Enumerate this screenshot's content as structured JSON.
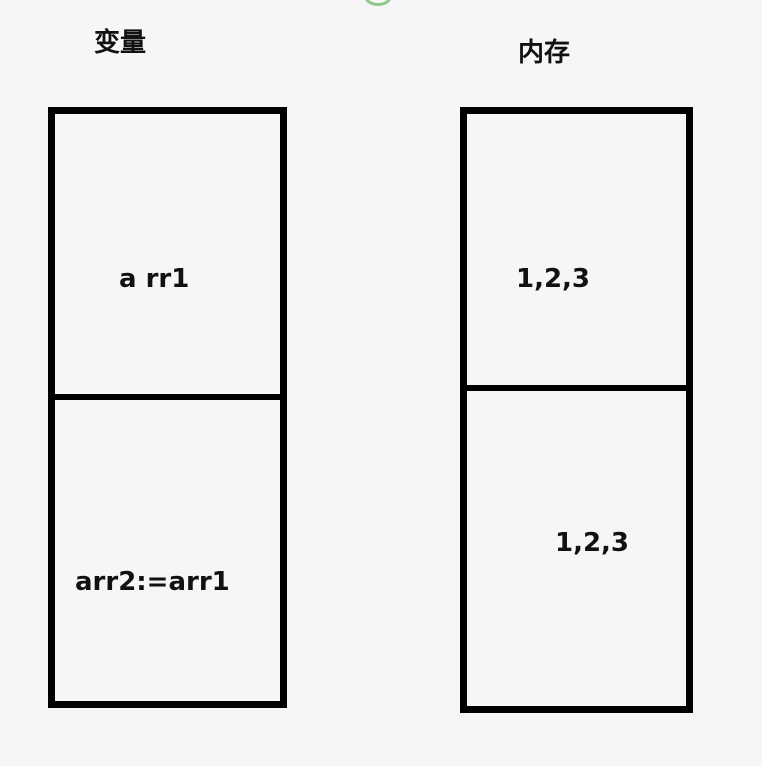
{
  "variables_column": {
    "title": "变量",
    "cells": [
      {
        "text": "a rr1"
      },
      {
        "text": "arr2:=arr1"
      }
    ]
  },
  "memory_column": {
    "title": "内存",
    "cells": [
      {
        "text": "1,2,3"
      },
      {
        "text": "1,2,3"
      }
    ]
  },
  "colors": {
    "background": "#f6f6f6",
    "stroke": "#000000",
    "text": "#111111",
    "top_mark": "#8fc98a"
  }
}
